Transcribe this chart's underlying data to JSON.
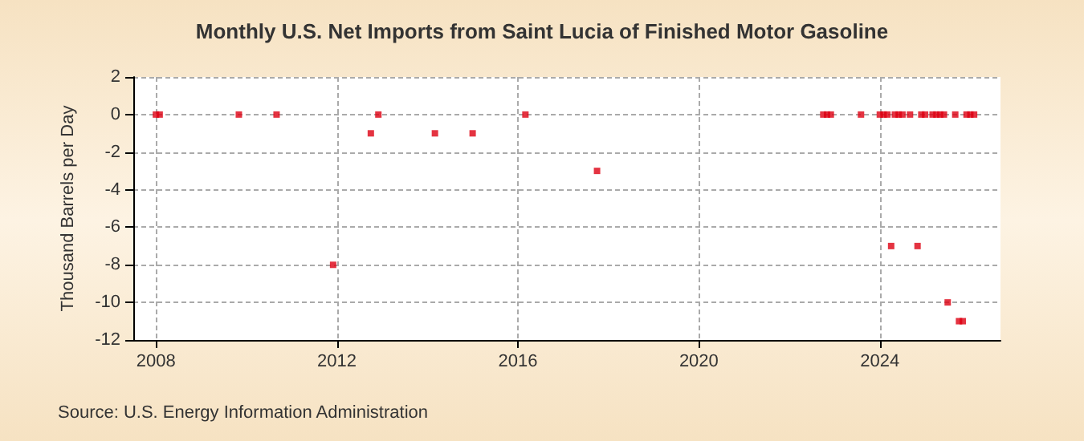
{
  "chart_data": {
    "type": "scatter",
    "title": "Monthly U.S. Net Imports from Saint Lucia of Finished Motor Gasoline",
    "ylabel": "Thousand Barrels per Day",
    "annotations": [
      "Source: U.S. Energy Information Administration"
    ],
    "x": [
      "2008-01",
      "2008-02",
      "2009-11",
      "2010-09",
      "2011-12",
      "2012-10",
      "2012-12",
      "2014-03",
      "2015-01",
      "2016-03",
      "2017-10",
      "2022-10",
      "2022-11",
      "2022-12",
      "2023-08",
      "2024-01",
      "2024-02",
      "2024-03",
      "2024-04",
      "2024-05",
      "2024-06",
      "2024-07",
      "2024-09",
      "2024-11",
      "2024-12",
      "2025-01",
      "2025-03",
      "2025-04",
      "2025-05",
      "2025-06",
      "2025-07",
      "2025-09",
      "2025-10",
      "2025-11",
      "2025-12",
      "2026-01",
      "2026-02"
    ],
    "series": [
      {
        "color": "#dd0011",
        "values": [
          0,
          0,
          0,
          0,
          -8,
          -1,
          0,
          -1,
          -1,
          0,
          -3,
          0,
          0,
          0,
          0,
          0,
          0,
          0,
          -7,
          0,
          0,
          0,
          0,
          -7,
          0,
          0,
          0,
          0,
          0,
          0,
          -10,
          0,
          -11,
          -11,
          0,
          0,
          0
        ]
      }
    ],
    "xlim": [
      "2007-07",
      "2026-09"
    ],
    "xticks": [
      "2008",
      "2012",
      "2016",
      "2020",
      "2024"
    ],
    "ylim": [
      -12,
      2
    ],
    "yticks": [
      -12,
      -10,
      -8,
      -6,
      -4,
      -2,
      0,
      2
    ],
    "grid": true,
    "marker": "square",
    "legend": false
  }
}
